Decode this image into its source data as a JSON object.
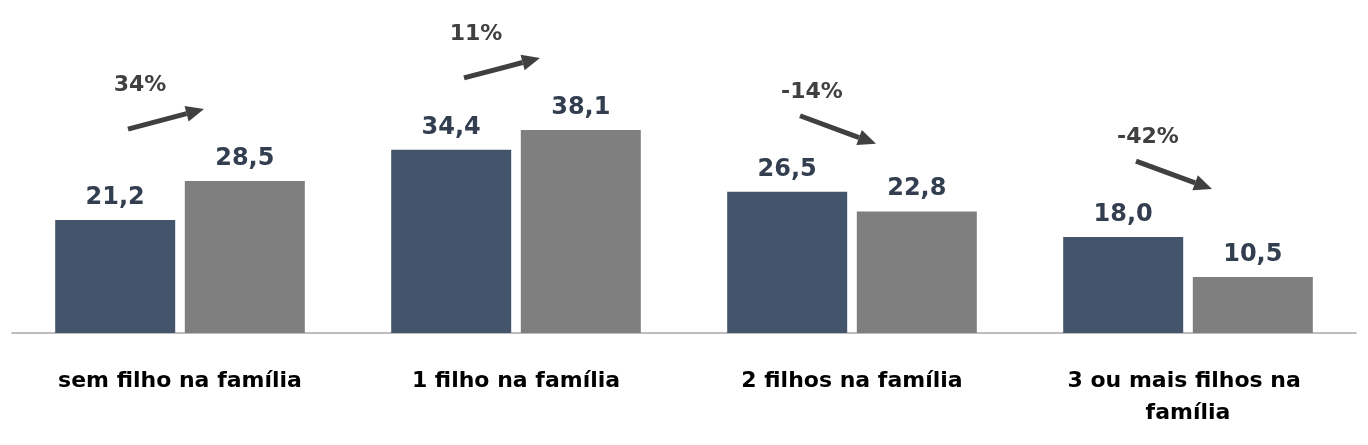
{
  "chart_data": {
    "type": "bar",
    "categories": [
      "sem filho na família",
      "1 filho na família",
      "2 filhos na família",
      "3 ou mais filhos na família"
    ],
    "series": [
      {
        "color": "#44546a",
        "values": [
          21.2,
          34.4,
          26.5,
          18.0
        ],
        "value_labels": [
          "21,2",
          "34,4",
          "26,5",
          "18,0"
        ]
      },
      {
        "color": "#7f7f7f",
        "values": [
          28.5,
          38.1,
          22.8,
          10.5
        ],
        "value_labels": [
          "28,5",
          "38,1",
          "22,8",
          "10,5"
        ]
      }
    ],
    "annotations": [
      "34%",
      "11%",
      "-14%",
      "-42%"
    ]
  }
}
